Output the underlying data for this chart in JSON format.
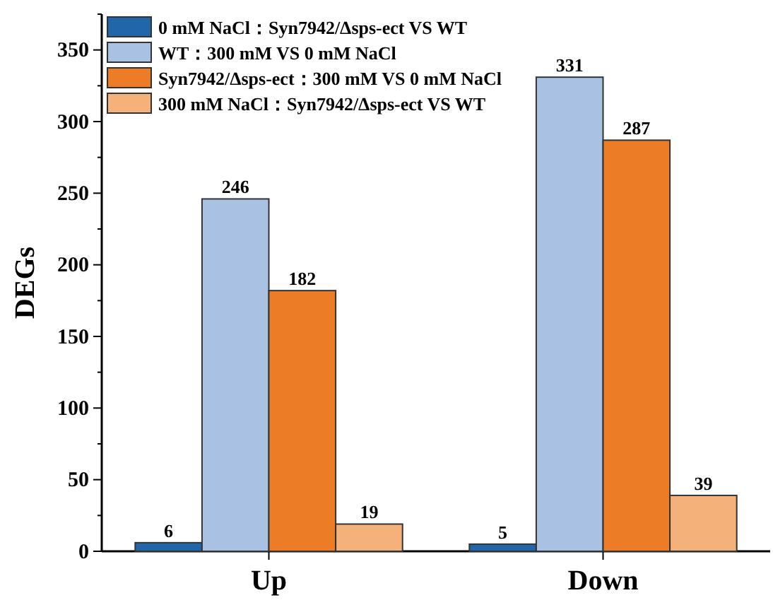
{
  "chart_data": {
    "type": "bar",
    "ylabel": "DEGs",
    "categories": [
      "Up",
      "Down"
    ],
    "series": [
      {
        "name": "0 mM NaCl：Syn7942/Δsps-ect VS WT",
        "color": "#2166a8",
        "values": [
          6,
          5
        ]
      },
      {
        "name": "WT：300 mM VS 0 mM NaCl",
        "color": "#a9c1e3",
        "values": [
          246,
          331
        ]
      },
      {
        "name": "Syn7942/Δsps-ect：300 mM VS 0 mM NaCl",
        "color": "#ec7d26",
        "values": [
          182,
          287
        ]
      },
      {
        "name": "300 mM NaCl：Syn7942/Δsps-ect VS WT",
        "color": "#f4b27a",
        "values": [
          19,
          39
        ]
      }
    ],
    "ylim": [
      0,
      375
    ],
    "yticks": [
      0,
      50,
      100,
      150,
      200,
      250,
      300,
      350
    ],
    "grid": false,
    "legend": "top left",
    "data_labels": true
  }
}
